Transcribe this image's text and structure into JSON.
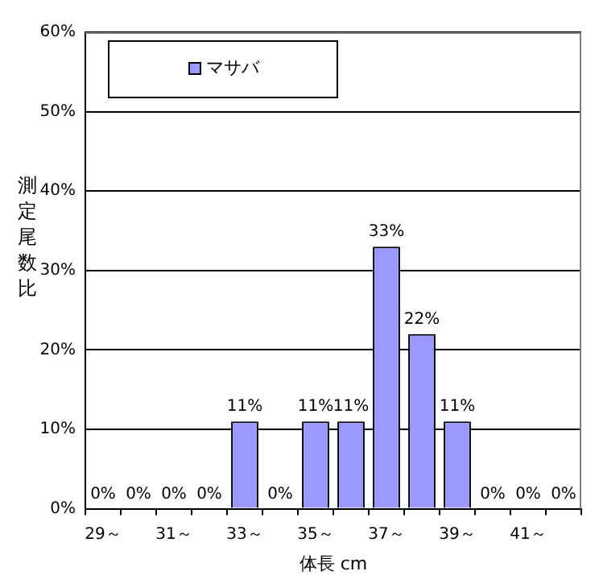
{
  "chart_data": {
    "type": "bar",
    "ylabel": "測定尾数比",
    "xlabel": "体長 cm",
    "categories": [
      "29～",
      null,
      "31～",
      null,
      "33～",
      null,
      "35～",
      null,
      "37～",
      null,
      "39～",
      null,
      "41～",
      null
    ],
    "series": [
      {
        "name": "マサバ",
        "color": "#9999ff",
        "values": [
          0,
          0,
          0,
          0,
          11,
          0,
          11,
          11,
          33,
          22,
          11,
          0,
          0,
          0
        ],
        "value_labels": [
          "0%",
          "0%",
          "0%",
          "0%",
          "11%",
          "0%",
          "11%",
          "11%",
          "33%",
          "22%",
          "11%",
          "0%",
          "0%",
          "0%"
        ]
      }
    ],
    "ylim": [
      0,
      60
    ],
    "yticks": [
      {
        "value": 0,
        "label": "0%"
      },
      {
        "value": 10,
        "label": "10%"
      },
      {
        "value": 20,
        "label": "20%"
      },
      {
        "value": 30,
        "label": "30%"
      },
      {
        "value": 40,
        "label": "40%"
      },
      {
        "value": 50,
        "label": "50%"
      },
      {
        "value": 60,
        "label": "60%"
      }
    ],
    "grid": "y",
    "legend": "top left"
  }
}
